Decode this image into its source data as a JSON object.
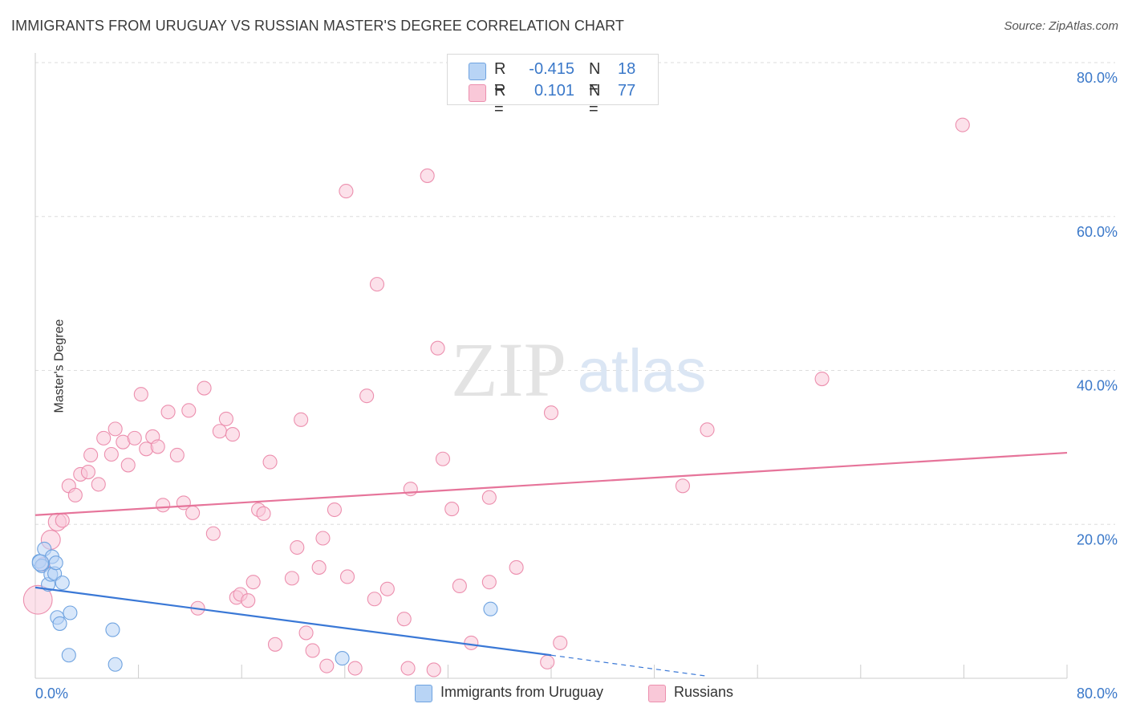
{
  "title": "IMMIGRANTS FROM URUGUAY VS RUSSIAN MASTER'S DEGREE CORRELATION CHART",
  "source": "Source: ZipAtlas.com",
  "watermark": {
    "zip": "ZIP",
    "atlas": "atlas"
  },
  "legend_top": {
    "rows": [
      {
        "r_label": "R =",
        "r_value": "-0.415",
        "n_label": "N =",
        "n_value": "18"
      },
      {
        "r_label": "R =",
        "r_value": "0.101",
        "n_label": "N =",
        "n_value": "77"
      }
    ]
  },
  "legend_bottom": {
    "items": [
      {
        "label": "Immigrants from Uruguay"
      },
      {
        "label": "Russians"
      }
    ]
  },
  "colors": {
    "blue_fill": "#b8d4f5",
    "blue_stroke": "#6fa3e0",
    "blue_line": "#3a78d6",
    "pink_fill": "#f9c8d8",
    "pink_stroke": "#ec8fae",
    "pink_line": "#e6749a",
    "axis_text": "#3a78c9",
    "grid": "#dddddd"
  },
  "chart_data": {
    "type": "scatter",
    "title": "IMMIGRANTS FROM URUGUAY VS RUSSIAN MASTER'S DEGREE CORRELATION CHART",
    "xlabel": "",
    "ylabel": "Master's Degree",
    "xlim": [
      0,
      80
    ],
    "ylim": [
      0,
      80
    ],
    "x_tick_labels": [
      "0.0%",
      "80.0%"
    ],
    "y_tick_labels": [
      "20.0%",
      "40.0%",
      "60.0%",
      "80.0%"
    ],
    "y_ticks": [
      20,
      40,
      60,
      80
    ],
    "series": [
      {
        "name": "Immigrants from Uruguay",
        "color": "blue",
        "r": -0.415,
        "n": 18,
        "trend": {
          "x": [
            0,
            40
          ],
          "y": [
            11.8,
            3.0
          ],
          "dash_x": [
            40,
            52
          ],
          "dash_y": [
            3.0,
            0.3
          ]
        },
        "points": [
          {
            "x": 0.3,
            "y": 15.2,
            "s": 1
          },
          {
            "x": 0.5,
            "y": 14.6,
            "s": 1
          },
          {
            "x": 0.7,
            "y": 16.8,
            "s": 1
          },
          {
            "x": 1.0,
            "y": 12.2,
            "s": 1
          },
          {
            "x": 1.2,
            "y": 13.5,
            "s": 1
          },
          {
            "x": 1.3,
            "y": 15.8,
            "s": 1
          },
          {
            "x": 1.5,
            "y": 13.6,
            "s": 1
          },
          {
            "x": 1.6,
            "y": 15.0,
            "s": 1
          },
          {
            "x": 1.7,
            "y": 7.9,
            "s": 1
          },
          {
            "x": 1.9,
            "y": 7.1,
            "s": 1
          },
          {
            "x": 2.1,
            "y": 12.4,
            "s": 1
          },
          {
            "x": 2.6,
            "y": 3.0,
            "s": 1
          },
          {
            "x": 2.7,
            "y": 8.5,
            "s": 1
          },
          {
            "x": 6.0,
            "y": 6.3,
            "s": 1
          },
          {
            "x": 6.2,
            "y": 1.8,
            "s": 1
          },
          {
            "x": 23.8,
            "y": 2.6,
            "s": 1
          },
          {
            "x": 35.3,
            "y": 9.0,
            "s": 1
          },
          {
            "x": 0.4,
            "y": 15.0,
            "s": 1.2
          }
        ]
      },
      {
        "name": "Russians",
        "color": "pink",
        "r": 0.101,
        "n": 77,
        "trend": {
          "x": [
            0,
            80
          ],
          "y": [
            21.2,
            29.3
          ]
        },
        "points": [
          {
            "x": 0.2,
            "y": 10.2,
            "s": 2.1
          },
          {
            "x": 1.2,
            "y": 18.0,
            "s": 1.4
          },
          {
            "x": 1.7,
            "y": 20.3,
            "s": 1.3
          },
          {
            "x": 2.1,
            "y": 20.5,
            "s": 1
          },
          {
            "x": 2.6,
            "y": 25.0,
            "s": 1
          },
          {
            "x": 3.1,
            "y": 23.8,
            "s": 1
          },
          {
            "x": 3.5,
            "y": 26.5,
            "s": 1
          },
          {
            "x": 4.1,
            "y": 26.8,
            "s": 1
          },
          {
            "x": 4.3,
            "y": 29.0,
            "s": 1
          },
          {
            "x": 4.9,
            "y": 25.2,
            "s": 1
          },
          {
            "x": 5.3,
            "y": 31.2,
            "s": 1
          },
          {
            "x": 5.9,
            "y": 29.1,
            "s": 1
          },
          {
            "x": 6.2,
            "y": 32.4,
            "s": 1
          },
          {
            "x": 6.8,
            "y": 30.7,
            "s": 1
          },
          {
            "x": 7.2,
            "y": 27.7,
            "s": 1
          },
          {
            "x": 7.7,
            "y": 31.2,
            "s": 1
          },
          {
            "x": 8.2,
            "y": 36.9,
            "s": 1
          },
          {
            "x": 8.6,
            "y": 29.8,
            "s": 1
          },
          {
            "x": 9.1,
            "y": 31.4,
            "s": 1
          },
          {
            "x": 9.5,
            "y": 30.1,
            "s": 1
          },
          {
            "x": 9.9,
            "y": 22.5,
            "s": 1
          },
          {
            "x": 10.3,
            "y": 34.6,
            "s": 1
          },
          {
            "x": 11.0,
            "y": 29.0,
            "s": 1
          },
          {
            "x": 11.5,
            "y": 22.8,
            "s": 1
          },
          {
            "x": 11.9,
            "y": 34.8,
            "s": 1
          },
          {
            "x": 12.2,
            "y": 21.5,
            "s": 1
          },
          {
            "x": 12.6,
            "y": 9.1,
            "s": 1
          },
          {
            "x": 13.1,
            "y": 37.7,
            "s": 1
          },
          {
            "x": 13.8,
            "y": 18.8,
            "s": 1
          },
          {
            "x": 14.3,
            "y": 32.1,
            "s": 1
          },
          {
            "x": 14.8,
            "y": 33.7,
            "s": 1
          },
          {
            "x": 15.3,
            "y": 31.7,
            "s": 1
          },
          {
            "x": 15.6,
            "y": 10.5,
            "s": 1
          },
          {
            "x": 15.9,
            "y": 10.9,
            "s": 1
          },
          {
            "x": 16.5,
            "y": 10.1,
            "s": 1
          },
          {
            "x": 16.9,
            "y": 12.5,
            "s": 1
          },
          {
            "x": 17.3,
            "y": 21.9,
            "s": 1
          },
          {
            "x": 17.7,
            "y": 21.4,
            "s": 1
          },
          {
            "x": 18.2,
            "y": 28.1,
            "s": 1
          },
          {
            "x": 18.6,
            "y": 4.4,
            "s": 1
          },
          {
            "x": 19.9,
            "y": 13.0,
            "s": 1
          },
          {
            "x": 20.3,
            "y": 17.0,
            "s": 1
          },
          {
            "x": 20.6,
            "y": 33.6,
            "s": 1
          },
          {
            "x": 21.0,
            "y": 5.9,
            "s": 1
          },
          {
            "x": 21.5,
            "y": 3.6,
            "s": 1
          },
          {
            "x": 22.0,
            "y": 14.4,
            "s": 1
          },
          {
            "x": 22.3,
            "y": 18.2,
            "s": 1
          },
          {
            "x": 22.6,
            "y": 1.6,
            "s": 1
          },
          {
            "x": 23.2,
            "y": 21.9,
            "s": 1
          },
          {
            "x": 24.1,
            "y": 63.3,
            "s": 1
          },
          {
            "x": 24.2,
            "y": 13.2,
            "s": 1
          },
          {
            "x": 24.8,
            "y": 1.3,
            "s": 1
          },
          {
            "x": 25.7,
            "y": 36.7,
            "s": 1
          },
          {
            "x": 26.3,
            "y": 10.3,
            "s": 1
          },
          {
            "x": 26.5,
            "y": 51.2,
            "s": 1
          },
          {
            "x": 27.3,
            "y": 11.6,
            "s": 1
          },
          {
            "x": 28.6,
            "y": 7.7,
            "s": 1
          },
          {
            "x": 28.9,
            "y": 1.3,
            "s": 1
          },
          {
            "x": 29.1,
            "y": 24.6,
            "s": 1
          },
          {
            "x": 30.9,
            "y": 1.1,
            "s": 1
          },
          {
            "x": 30.4,
            "y": 65.3,
            "s": 1
          },
          {
            "x": 31.2,
            "y": 42.9,
            "s": 1
          },
          {
            "x": 31.6,
            "y": 28.5,
            "s": 1
          },
          {
            "x": 32.3,
            "y": 22.0,
            "s": 1
          },
          {
            "x": 32.9,
            "y": 12.0,
            "s": 1
          },
          {
            "x": 33.8,
            "y": 4.6,
            "s": 1
          },
          {
            "x": 35.2,
            "y": 23.5,
            "s": 1
          },
          {
            "x": 35.2,
            "y": 12.5,
            "s": 1
          },
          {
            "x": 37.3,
            "y": 14.4,
            "s": 1
          },
          {
            "x": 39.7,
            "y": 2.1,
            "s": 1
          },
          {
            "x": 40.0,
            "y": 34.5,
            "s": 1
          },
          {
            "x": 40.7,
            "y": 4.6,
            "s": 1
          },
          {
            "x": 50.2,
            "y": 25.0,
            "s": 1
          },
          {
            "x": 52.1,
            "y": 32.3,
            "s": 1
          },
          {
            "x": 61.0,
            "y": 38.9,
            "s": 1
          },
          {
            "x": 71.9,
            "y": 71.9,
            "s": 1
          },
          {
            "x": 0.6,
            "y": 14.8,
            "s": 1
          }
        ]
      }
    ]
  }
}
